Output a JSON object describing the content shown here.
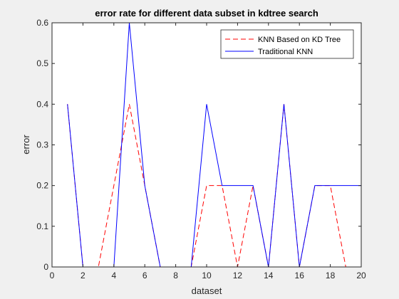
{
  "chart_data": {
    "type": "line",
    "title": "error rate for different data subset in kdtree search",
    "xlabel": "dataset",
    "ylabel": "error",
    "xlim": [
      0,
      20
    ],
    "ylim": [
      0,
      0.6
    ],
    "x_ticks": [
      0,
      2,
      4,
      6,
      8,
      10,
      12,
      14,
      16,
      18,
      20
    ],
    "y_ticks": [
      0,
      0.1,
      0.2,
      0.3,
      0.4,
      0.5,
      0.6
    ],
    "legend_position": "top-right",
    "grid": false,
    "series": [
      {
        "name": "KNN Based on KD Tree",
        "color": "#ff0000",
        "dash": "dashed",
        "x": [
          1,
          2,
          3,
          4,
          5,
          6,
          7,
          8,
          9,
          10,
          11,
          12,
          13,
          14,
          15,
          16,
          17,
          18,
          19,
          20
        ],
        "y": [
          0.4,
          0,
          0,
          0.2,
          0.4,
          0.2,
          0,
          0,
          0,
          0.2,
          0.2,
          0,
          0.2,
          0,
          0.4,
          0,
          0.2,
          0.2,
          0,
          0
        ]
      },
      {
        "name": "Traditional KNN",
        "color": "#0000ff",
        "dash": "solid",
        "x": [
          1,
          2,
          3,
          4,
          5,
          6,
          7,
          8,
          9,
          10,
          11,
          12,
          13,
          14,
          15,
          16,
          17,
          18,
          19,
          20
        ],
        "y": [
          0.4,
          0,
          0,
          0,
          0.6,
          0.2,
          0,
          0,
          0,
          0.4,
          0.2,
          0.2,
          0.2,
          0,
          0.4,
          0,
          0.2,
          0.2,
          0.2,
          0.2
        ]
      }
    ]
  }
}
